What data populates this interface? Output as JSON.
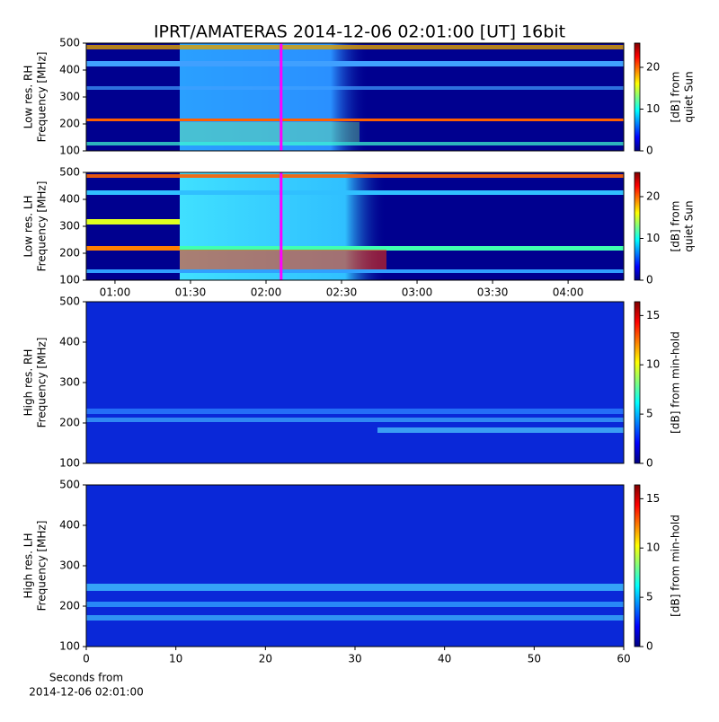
{
  "title": "IPRT/AMATERAS 2014-12-06 02:01:00 [UT]   16bit",
  "chart_data": [
    {
      "type": "heatmap",
      "ylabel": [
        "Low res. RH",
        "Frequency [MHz]"
      ],
      "ylim": [
        100,
        500
      ],
      "yticks": [
        100,
        200,
        300,
        400,
        500
      ],
      "xlim": [
        48.6,
        262.1
      ],
      "colormap": "jet",
      "marker": {
        "x": 126,
        "color": "#ff00ff"
      },
      "colorbar": {
        "label": [
          "[dB] from",
          "quiet Sun"
        ],
        "clim": [
          0,
          25.8
        ],
        "ticks": [
          0,
          10,
          20
        ]
      }
    },
    {
      "type": "heatmap",
      "ylabel": [
        "Low res. LH",
        "Frequency [MHz]"
      ],
      "ylim": [
        100,
        500
      ],
      "yticks": [
        100,
        200,
        300,
        400,
        500
      ],
      "xlim": [
        48.6,
        262.1
      ],
      "xticks": [
        {
          "value": 60,
          "label": "01:00"
        },
        {
          "value": 90,
          "label": "01:30"
        },
        {
          "value": 120,
          "label": "02:00"
        },
        {
          "value": 150,
          "label": "02:30"
        },
        {
          "value": 180,
          "label": "03:00"
        },
        {
          "value": 210,
          "label": "03:30"
        },
        {
          "value": 240,
          "label": "04:00"
        }
      ],
      "colormap": "jet",
      "marker": {
        "x": 126,
        "color": "#ff00ff"
      },
      "colorbar": {
        "label": [
          "[dB] from",
          "quiet Sun"
        ],
        "clim": [
          0,
          25.8
        ],
        "ticks": [
          0,
          10,
          20
        ]
      }
    },
    {
      "type": "heatmap",
      "ylabel": [
        "High res. RH",
        "Frequency [MHz]"
      ],
      "ylim": [
        100,
        500
      ],
      "yticks": [
        100,
        200,
        300,
        400,
        500
      ],
      "xlim": [
        0,
        60
      ],
      "colormap": "jet",
      "colorbar": {
        "label": [
          "[dB] from min-hold"
        ],
        "clim": [
          0,
          16.4
        ],
        "ticks": [
          0,
          5,
          10,
          15
        ]
      }
    },
    {
      "type": "heatmap",
      "ylabel": [
        "High res. LH",
        "Frequency [MHz]"
      ],
      "ylim": [
        100,
        500
      ],
      "yticks": [
        100,
        200,
        300,
        400,
        500
      ],
      "xlim": [
        0,
        60
      ],
      "xticks": [
        0,
        10,
        20,
        30,
        40,
        50,
        60
      ],
      "xlabel": [
        "Seconds from",
        "2014-12-06 02:01:00"
      ],
      "colormap": "jet",
      "colorbar": {
        "label": [
          "[dB] from min-hold"
        ],
        "clim": [
          0,
          16.4
        ],
        "ticks": [
          0,
          5,
          10,
          15
        ]
      }
    }
  ]
}
